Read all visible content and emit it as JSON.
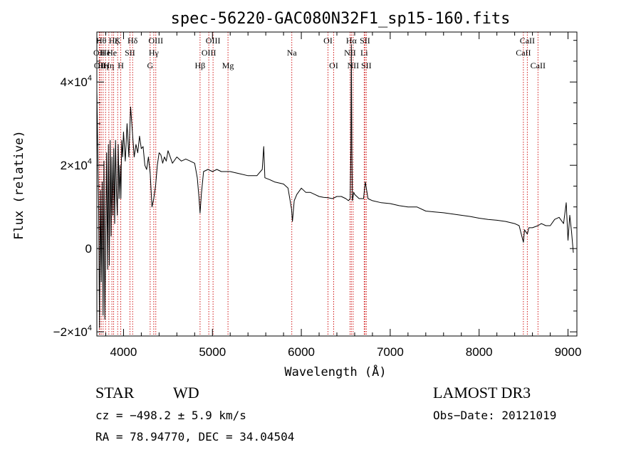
{
  "chart_data": {
    "type": "line",
    "title": "spec-56220-GAC080N32F1_sp15-160.fits",
    "xlabel": "Wavelength (Å)",
    "ylabel": "Flux (relative)",
    "xlim": [
      3700,
      9100
    ],
    "ylim": [
      -21000,
      52000
    ],
    "x_ticks": [
      4000,
      5000,
      6000,
      7000,
      8000,
      9000
    ],
    "x_tick_labels": [
      "4000",
      "5000",
      "6000",
      "7000",
      "8000",
      "9000"
    ],
    "y_ticks": [
      -20000,
      0,
      20000,
      40000
    ],
    "y_tick_labels": [
      {
        "pre": "−2×10",
        "exp": "4"
      },
      {
        "pre": "0",
        "exp": ""
      },
      {
        "pre": "2×10",
        "exp": "4"
      },
      {
        "pre": "4×10",
        "exp": "4"
      }
    ],
    "line_color": "#cc0000",
    "spectrum": {
      "x": [
        3700,
        3720,
        3730,
        3740,
        3750,
        3760,
        3770,
        3780,
        3790,
        3800,
        3810,
        3820,
        3830,
        3840,
        3850,
        3860,
        3870,
        3880,
        3890,
        3900,
        3910,
        3920,
        3930,
        3940,
        3950,
        3960,
        3970,
        3980,
        3990,
        4000,
        4020,
        4040,
        4060,
        4080,
        4100,
        4120,
        4140,
        4160,
        4180,
        4200,
        4220,
        4240,
        4260,
        4280,
        4300,
        4320,
        4340,
        4360,
        4380,
        4400,
        4420,
        4440,
        4460,
        4480,
        4500,
        4550,
        4600,
        4650,
        4700,
        4750,
        4800,
        4830,
        4850,
        4861,
        4875,
        4900,
        4950,
        5000,
        5050,
        5100,
        5150,
        5200,
        5300,
        5400,
        5500,
        5560,
        5577,
        5590,
        5650,
        5700,
        5800,
        5850,
        5890,
        5900,
        5920,
        5950,
        6000,
        6050,
        6100,
        6150,
        6200,
        6250,
        6300,
        6350,
        6400,
        6450,
        6500,
        6530,
        6550,
        6558,
        6563,
        6568,
        6575,
        6590,
        6600,
        6650,
        6700,
        6720,
        6750,
        6800,
        6900,
        7000,
        7100,
        7200,
        7300,
        7400,
        7500,
        7600,
        7700,
        7800,
        7900,
        8000,
        8100,
        8200,
        8300,
        8400,
        8450,
        8498,
        8510,
        8542,
        8560,
        8600,
        8662,
        8700,
        8750,
        8800,
        8850,
        8900,
        8950,
        8980,
        9000,
        9020,
        9040,
        9060
      ],
      "y": [
        38000,
        10000,
        -19000,
        14000,
        -8000,
        16000,
        -16000,
        21000,
        -17000,
        3000,
        23000,
        -5000,
        25000,
        -4000,
        26000,
        3000,
        22000,
        8000,
        24000,
        6000,
        26000,
        14000,
        8000,
        25000,
        12000,
        20000,
        12000,
        26000,
        22000,
        28000,
        21000,
        30000,
        22000,
        34000,
        28000,
        22000,
        25000,
        23000,
        27000,
        24000,
        24500,
        20000,
        19000,
        22000,
        18000,
        10000,
        12000,
        15000,
        20000,
        23000,
        22500,
        20500,
        22000,
        21000,
        23500,
        20500,
        22000,
        21000,
        21500,
        21000,
        20500,
        17000,
        12000,
        8500,
        13000,
        18500,
        19000,
        18500,
        19000,
        18500,
        18500,
        18500,
        18000,
        17500,
        17500,
        19000,
        24500,
        17000,
        16500,
        16000,
        15500,
        14500,
        9500,
        6500,
        11500,
        13000,
        14500,
        13500,
        13500,
        13000,
        12500,
        12300,
        12200,
        12000,
        12500,
        12500,
        12000,
        11500,
        12000,
        24000,
        49000,
        24000,
        11500,
        13500,
        13000,
        12000,
        12000,
        16000,
        12000,
        11500,
        11000,
        10800,
        10300,
        10000,
        10000,
        9000,
        8800,
        8600,
        8300,
        8000,
        7700,
        7300,
        7000,
        6800,
        6500,
        6000,
        5500,
        1500,
        4500,
        3500,
        5000,
        5000,
        5500,
        6000,
        5500,
        5500,
        7000,
        7500,
        6000,
        11000,
        2000,
        8000,
        4000,
        -1000
      ]
    },
    "line_markers": [
      {
        "wave": 3727,
        "label": "OII",
        "row": 2
      },
      {
        "wave": 3734,
        "label": "OII",
        "row": 3
      },
      {
        "wave": 3750,
        "label": "Hθ",
        "row": 1
      },
      {
        "wave": 3771,
        "label": "Hη",
        "row": 3
      },
      {
        "wave": 3798,
        "label": "He",
        "row": 2
      },
      {
        "wave": 3835,
        "label": "Hη",
        "row": 3
      },
      {
        "wave": 3869,
        "label": "He",
        "row": 2
      },
      {
        "wave": 3889,
        "label": "Hζ",
        "row": 1
      },
      {
        "wave": 3934,
        "label": "K",
        "row": 1
      },
      {
        "wave": 3969,
        "label": "H",
        "row": 3
      },
      {
        "wave": 4072,
        "label": "SII",
        "row": 2
      },
      {
        "wave": 4102,
        "label": "Hδ",
        "row": 1
      },
      {
        "wave": 4300,
        "label": "G",
        "row": 3
      },
      {
        "wave": 4340,
        "label": "Hγ",
        "row": 2
      },
      {
        "wave": 4363,
        "label": "OIII",
        "row": 1
      },
      {
        "wave": 4861,
        "label": "Hβ",
        "row": 3
      },
      {
        "wave": 4959,
        "label": "OIII",
        "row": 2
      },
      {
        "wave": 5007,
        "label": "OIII",
        "row": 1
      },
      {
        "wave": 5175,
        "label": "Mg",
        "row": 3
      },
      {
        "wave": 5893,
        "label": "Na",
        "row": 2
      },
      {
        "wave": 6300,
        "label": "OI",
        "row": 1
      },
      {
        "wave": 6364,
        "label": "OI",
        "row": 3
      },
      {
        "wave": 6548,
        "label": "NII",
        "row": 2
      },
      {
        "wave": 6563,
        "label": "Hα",
        "row": 1
      },
      {
        "wave": 6583,
        "label": "NII",
        "row": 3
      },
      {
        "wave": 6707,
        "label": "Li",
        "row": 2
      },
      {
        "wave": 6716,
        "label": "SII",
        "row": 1
      },
      {
        "wave": 6731,
        "label": "SII",
        "row": 3
      },
      {
        "wave": 8498,
        "label": "CaII",
        "row": 2
      },
      {
        "wave": 8542,
        "label": "CaII",
        "row": 1
      },
      {
        "wave": 8662,
        "label": "CaII",
        "row": 3
      }
    ]
  },
  "footer": {
    "object_class": "STAR",
    "subclass": "WD",
    "survey": "LAMOST DR3",
    "redshift": "cz = −498.2 ± 5.9 km/s",
    "obs_date": "Obs−Date: 20121019",
    "coords": "RA =  78.94770, DEC =  34.04504"
  }
}
